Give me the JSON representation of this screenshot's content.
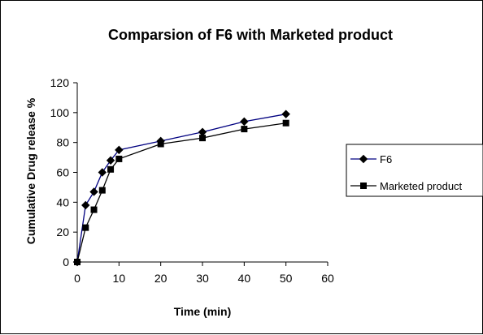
{
  "chart_data": {
    "type": "line",
    "title": "Comparsion of F6 with Marketed product",
    "xlabel": "Time (min)",
    "ylabel": "Cumulative Drug release %",
    "xlim": [
      0,
      60
    ],
    "ylim": [
      0,
      120
    ],
    "xticks": [
      0,
      10,
      20,
      30,
      40,
      50,
      60
    ],
    "yticks": [
      0,
      20,
      40,
      60,
      80,
      100,
      120
    ],
    "grid": false,
    "legend_position": "right",
    "series": [
      {
        "name": "F6",
        "marker": "diamond",
        "color": "#000080",
        "x": [
          0,
          2,
          4,
          6,
          8,
          10,
          20,
          30,
          40,
          50
        ],
        "y": [
          0,
          38,
          47,
          60,
          68,
          75,
          81,
          87,
          94,
          99
        ]
      },
      {
        "name": "Marketed product",
        "marker": "square",
        "color": "#000000",
        "x": [
          0,
          2,
          4,
          6,
          8,
          10,
          20,
          30,
          40,
          50
        ],
        "y": [
          0,
          23,
          35,
          48,
          62,
          69,
          79,
          83,
          89,
          93
        ]
      }
    ]
  }
}
